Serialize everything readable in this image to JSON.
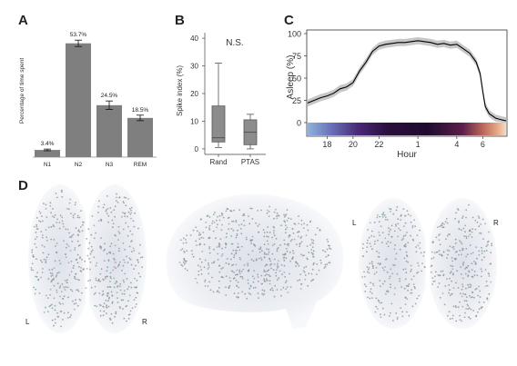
{
  "panels": {
    "a": "A",
    "b": "B",
    "c": "C",
    "d": "D"
  },
  "chart_data": [
    {
      "type": "bar",
      "panel": "A",
      "ylabel": "Percentage of time spent",
      "categories": [
        "N1",
        "N2",
        "N3",
        "REM"
      ],
      "values": [
        3.4,
        53.7,
        24.5,
        18.5
      ],
      "errors": [
        0.4,
        1.5,
        2.0,
        1.3
      ],
      "value_labels": [
        "3.4%",
        "53.7%",
        "24.5%",
        "18.5%"
      ],
      "ylim": [
        0,
        60
      ],
      "bar_color": "#7f7f7f"
    },
    {
      "type": "box",
      "panel": "B",
      "ylabel": "Spike index (%)",
      "categories": [
        "Rand",
        "PTAS"
      ],
      "annotation": "N.S.",
      "yticks": [
        0,
        10,
        20,
        30,
        40
      ],
      "ylim": [
        -2,
        42
      ],
      "boxes": [
        {
          "category": "Rand",
          "min": 0.5,
          "q1": 2.5,
          "median": 4.0,
          "q3": 15.5,
          "max": 31.0
        },
        {
          "category": "PTAS",
          "min": 0.0,
          "q1": 1.5,
          "median": 6.0,
          "q3": 10.5,
          "max": 12.5
        }
      ],
      "box_color": "#8c8c8c"
    },
    {
      "type": "line",
      "panel": "C",
      "ylabel": "Asleep (%)",
      "xlabel": "Hour",
      "xtick_labels": [
        "18",
        "20",
        "22",
        "1",
        "4",
        "6"
      ],
      "xtick_hours": [
        18,
        20,
        22,
        25,
        28,
        30
      ],
      "yticks": [
        0,
        25,
        50,
        75,
        100
      ],
      "ylim": [
        0,
        100
      ],
      "xlim": [
        16.5,
        31.8
      ],
      "x": [
        16.5,
        17.0,
        17.5,
        18.0,
        18.5,
        19.0,
        19.5,
        20.0,
        20.5,
        21.0,
        21.5,
        22.0,
        22.5,
        23.0,
        23.5,
        24.0,
        24.5,
        25.0,
        25.5,
        26.0,
        26.5,
        27.0,
        27.5,
        28.0,
        28.5,
        29.0,
        29.5,
        29.8,
        30.0,
        30.2,
        30.5,
        31.0,
        31.5,
        31.8
      ],
      "y": [
        22,
        25,
        28,
        30,
        33,
        38,
        40,
        45,
        58,
        68,
        80,
        86,
        88,
        89,
        90,
        90,
        91,
        92,
        91,
        90,
        88,
        89,
        87,
        88,
        83,
        78,
        68,
        55,
        35,
        18,
        10,
        5,
        3,
        2
      ],
      "band": 4,
      "line_color": "#000000",
      "band_color": "#bdbdbd"
    }
  ],
  "brain_views": [
    {
      "name": "axial-left",
      "labels": [
        "L",
        "R"
      ]
    },
    {
      "name": "sagittal",
      "labels": []
    },
    {
      "name": "coronal",
      "labels": [
        "L",
        "R"
      ]
    }
  ]
}
